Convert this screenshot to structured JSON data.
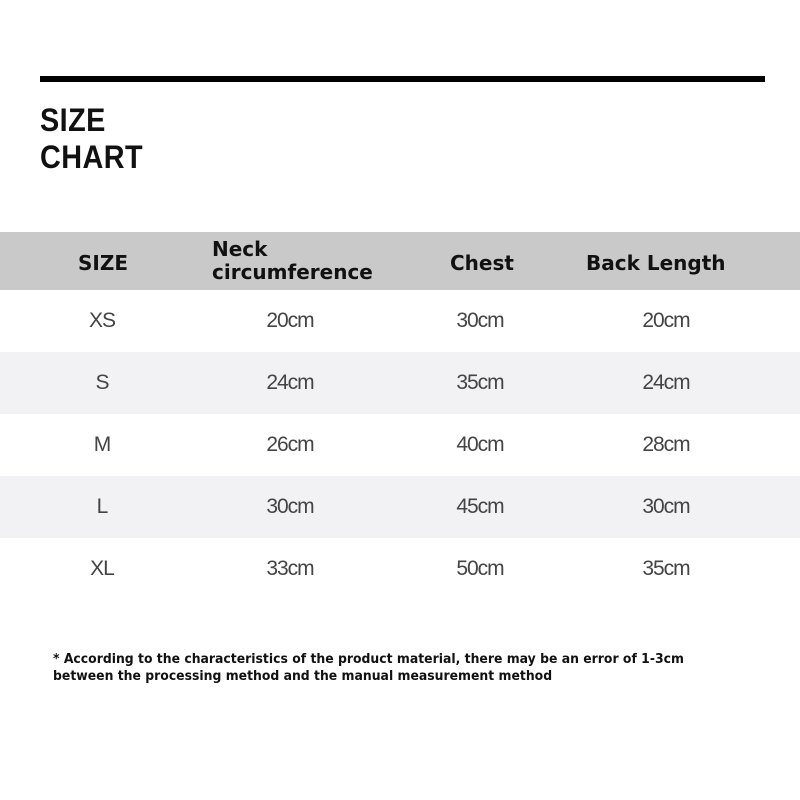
{
  "title": {
    "line1": "SIZE",
    "line2": "CHART"
  },
  "table": {
    "headers": [
      "SIZE",
      "Neck circumference",
      "Chest",
      "Back Length"
    ],
    "neck_line1": "Neck",
    "neck_line2": "circumference",
    "rows": [
      [
        "XS",
        "20cm",
        "30cm",
        "20cm"
      ],
      [
        "S",
        "24cm",
        "35cm",
        "24cm"
      ],
      [
        "M",
        "26cm",
        "40cm",
        "28cm"
      ],
      [
        "L",
        "30cm",
        "45cm",
        "30cm"
      ],
      [
        "XL",
        "33cm",
        "50cm",
        "35cm"
      ]
    ]
  },
  "note": {
    "line1": "* According to the characteristics of the product material, there may be an error of 1-3cm",
    "line2": "between the processing method and the manual measurement method"
  },
  "colors": {
    "header_bg": "#c9c9c9",
    "alt_row_bg": "#f2f2f4",
    "rule": "#000000"
  }
}
